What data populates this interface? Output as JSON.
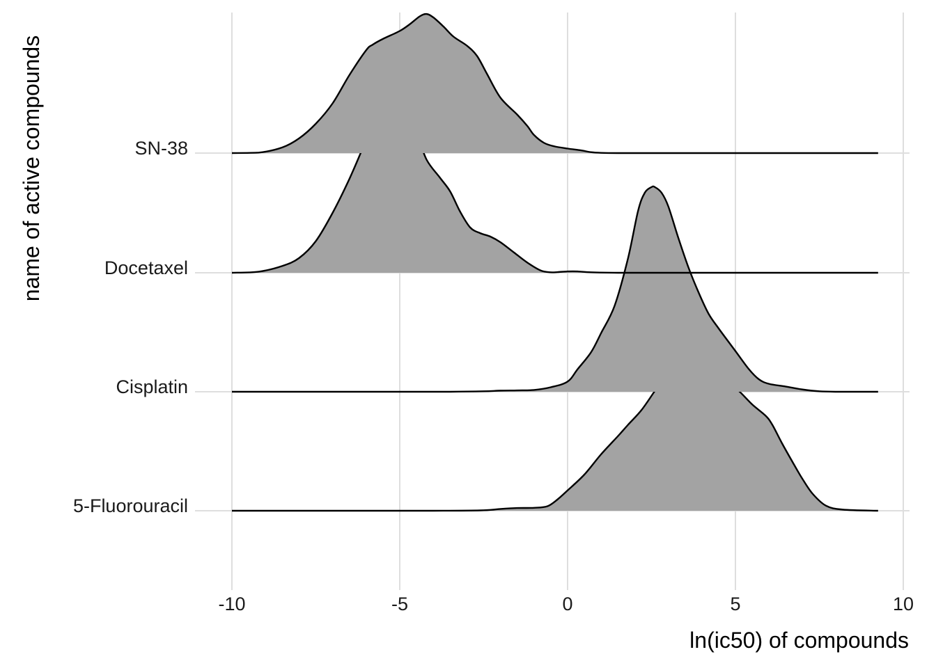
{
  "chart_data": {
    "type": "ridgeline",
    "title": "",
    "xlabel": "ln(ic50) of compounds",
    "ylabel": "name of active compounds",
    "xlim": [
      -10,
      10
    ],
    "x_ticks": [
      -10,
      -5,
      0,
      5,
      10
    ],
    "x_tick_labels": [
      "-10",
      "-5",
      "0",
      "5",
      "10"
    ],
    "grid": true,
    "fill_color": "#a3a3a3",
    "line_color": "#000000",
    "grid_color": "#dedede",
    "series": [
      {
        "name": "SN-38",
        "x": [
          -10,
          -9.2,
          -8.5,
          -8.0,
          -7.5,
          -7.0,
          -6.5,
          -6.0,
          -5.8,
          -5.5,
          -5.0,
          -4.7,
          -4.4,
          -4.2,
          -4.0,
          -3.7,
          -3.4,
          -3.0,
          -2.7,
          -2.4,
          -2.0,
          -1.5,
          -1.2,
          -1.0,
          -0.7,
          -0.4,
          0.0,
          0.4,
          0.7,
          1.0,
          1.5,
          3.0,
          6.0,
          9.25
        ],
        "density": [
          0,
          0.002,
          0.025,
          0.065,
          0.13,
          0.22,
          0.345,
          0.455,
          0.48,
          0.505,
          0.54,
          0.57,
          0.605,
          0.615,
          0.6,
          0.56,
          0.515,
          0.475,
          0.43,
          0.35,
          0.245,
          0.17,
          0.12,
          0.08,
          0.045,
          0.03,
          0.02,
          0.012,
          0.004,
          0.001,
          0,
          0,
          0,
          0
        ]
      },
      {
        "name": "Docetaxel",
        "x": [
          -10,
          -9.2,
          -8.5,
          -8.0,
          -7.5,
          -7.0,
          -6.5,
          -6.0,
          -5.7,
          -5.5,
          -5.2,
          -5.0,
          -4.7,
          -4.5,
          -4.2,
          -3.8,
          -3.5,
          -3.2,
          -2.9,
          -2.6,
          -2.3,
          -2.0,
          -1.6,
          -1.2,
          -0.8,
          -0.5,
          -0.3,
          0.0,
          0.3,
          0.7,
          1.5,
          3.0,
          6.0,
          9.25
        ],
        "density": [
          0,
          0.005,
          0.03,
          0.065,
          0.14,
          0.265,
          0.415,
          0.585,
          0.67,
          0.685,
          0.685,
          0.695,
          0.675,
          0.62,
          0.5,
          0.42,
          0.36,
          0.27,
          0.2,
          0.175,
          0.16,
          0.135,
          0.09,
          0.045,
          0.01,
          0.002,
          0.003,
          0.006,
          0.006,
          0.002,
          0,
          0,
          0,
          0
        ]
      },
      {
        "name": "Cisplatin",
        "x": [
          -10,
          -5,
          -3.5,
          -2.5,
          -2.0,
          -1.5,
          -1.0,
          -0.5,
          0.0,
          0.3,
          0.7,
          1.0,
          1.4,
          1.8,
          2.1,
          2.3,
          2.5,
          2.6,
          2.8,
          3.0,
          3.3,
          3.6,
          3.9,
          4.2,
          4.5,
          5.0,
          5.4,
          5.7,
          6.0,
          6.5,
          7.0,
          7.5,
          8.0,
          9.25
        ],
        "density": [
          0,
          0,
          0,
          0.002,
          0.005,
          0.006,
          0.008,
          0.02,
          0.045,
          0.1,
          0.175,
          0.26,
          0.38,
          0.59,
          0.8,
          0.88,
          0.905,
          0.905,
          0.88,
          0.82,
          0.68,
          0.55,
          0.44,
          0.345,
          0.28,
          0.18,
          0.1,
          0.055,
          0.035,
          0.023,
          0.01,
          0.002,
          0,
          0
        ]
      },
      {
        "name": "5-Fluorouracil",
        "x": [
          -10,
          -4,
          -2.5,
          -2.0,
          -1.5,
          -1.0,
          -0.6,
          -0.3,
          0.0,
          0.5,
          1.0,
          1.5,
          1.8,
          2.2,
          2.6,
          3.0,
          3.3,
          3.5,
          3.7,
          4.0,
          4.2,
          4.5,
          4.8,
          5.1,
          5.5,
          5.9,
          6.1,
          6.4,
          6.8,
          7.0,
          7.3,
          7.7,
          8.2,
          9.25
        ],
        "density": [
          0,
          0,
          0.002,
          0.008,
          0.012,
          0.013,
          0.02,
          0.05,
          0.09,
          0.16,
          0.25,
          0.33,
          0.38,
          0.445,
          0.53,
          0.615,
          0.66,
          0.67,
          0.66,
          0.6,
          0.575,
          0.56,
          0.56,
          0.53,
          0.47,
          0.42,
          0.38,
          0.295,
          0.19,
          0.14,
          0.075,
          0.022,
          0.005,
          0
        ]
      }
    ]
  }
}
